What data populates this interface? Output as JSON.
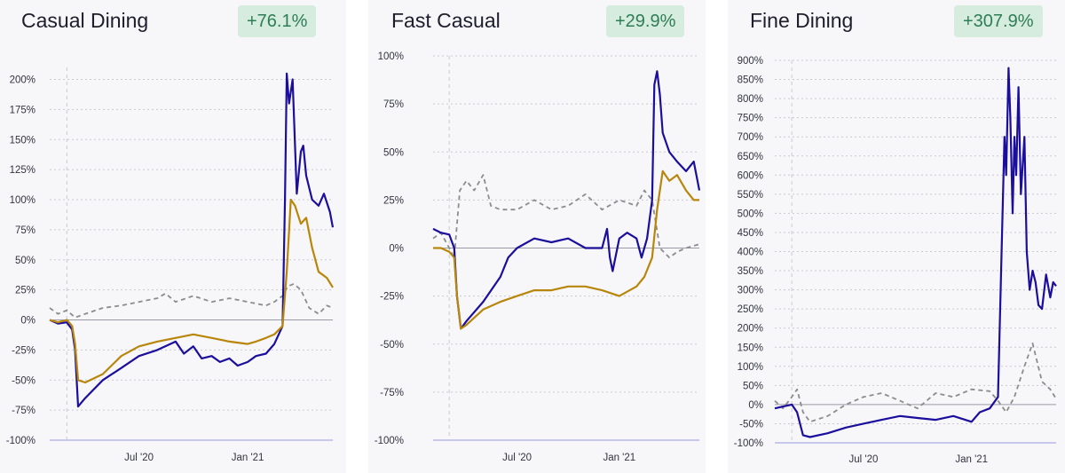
{
  "chart_data": [
    {
      "type": "line",
      "title": "Casual Dining",
      "badge": "+76.1%",
      "yticks": [
        "200%",
        "175%",
        "150%",
        "125%",
        "100%",
        "75%",
        "50%",
        "25%",
        "0%",
        "-25%",
        "-50%",
        "-75%",
        "-100%"
      ],
      "ylim": [
        -100,
        210
      ],
      "xlim": [
        "2020-02-01",
        "2021-05-25"
      ],
      "xticks": [
        {
          "label": "Jul '20",
          "date": "2020-07-01"
        },
        {
          "label": "Jan '21",
          "date": "2021-01-01"
        }
      ],
      "marker_date": "2020-03-01",
      "colors": {
        "blue": "#1b0e9c",
        "gold": "#b8860b",
        "gray": "#8c8c8c"
      },
      "series": [
        {
          "key": "blue",
          "style": "solid",
          "x": [
            "2020-02-01",
            "2020-02-15",
            "2020-03-01",
            "2020-03-10",
            "2020-03-15",
            "2020-03-20",
            "2020-04-01",
            "2020-05-01",
            "2020-06-01",
            "2020-07-01",
            "2020-08-01",
            "2020-09-01",
            "2020-09-15",
            "2020-10-01",
            "2020-10-15",
            "2020-11-01",
            "2020-11-15",
            "2020-12-01",
            "2020-12-15",
            "2021-01-01",
            "2021-01-15",
            "2021-02-01",
            "2021-02-15",
            "2021-03-01",
            "2021-03-05",
            "2021-03-08",
            "2021-03-12",
            "2021-03-18",
            "2021-03-25",
            "2021-04-01",
            "2021-04-05",
            "2021-04-10",
            "2021-04-20",
            "2021-05-01",
            "2021-05-10",
            "2021-05-20",
            "2021-05-25"
          ],
          "y": [
            0,
            -3,
            -2,
            -8,
            -25,
            -72,
            -65,
            -50,
            -40,
            -30,
            -25,
            -18,
            -28,
            -22,
            -32,
            -30,
            -35,
            -32,
            -38,
            -35,
            -30,
            -28,
            -20,
            -5,
            100,
            205,
            180,
            200,
            105,
            140,
            145,
            120,
            100,
            95,
            105,
            90,
            77
          ]
        },
        {
          "key": "gold",
          "style": "solid",
          "x": [
            "2020-02-01",
            "2020-02-15",
            "2020-03-01",
            "2020-03-10",
            "2020-03-15",
            "2020-03-20",
            "2020-04-01",
            "2020-05-01",
            "2020-06-01",
            "2020-07-01",
            "2020-08-01",
            "2020-09-01",
            "2020-10-01",
            "2020-11-01",
            "2020-12-01",
            "2021-01-01",
            "2021-01-15",
            "2021-02-01",
            "2021-02-15",
            "2021-03-01",
            "2021-03-08",
            "2021-03-15",
            "2021-03-22",
            "2021-04-01",
            "2021-04-10",
            "2021-04-20",
            "2021-05-01",
            "2021-05-15",
            "2021-05-25"
          ],
          "y": [
            0,
            -2,
            0,
            -5,
            -20,
            -50,
            -52,
            -45,
            -30,
            -22,
            -18,
            -15,
            -12,
            -15,
            -18,
            -20,
            -18,
            -15,
            -12,
            -5,
            40,
            100,
            95,
            80,
            85,
            60,
            40,
            35,
            27
          ]
        },
        {
          "key": "gray",
          "style": "dashed",
          "x": [
            "2020-02-01",
            "2020-02-15",
            "2020-03-01",
            "2020-03-15",
            "2020-04-01",
            "2020-05-01",
            "2020-06-01",
            "2020-07-01",
            "2020-08-01",
            "2020-08-15",
            "2020-09-01",
            "2020-10-01",
            "2020-11-01",
            "2020-12-01",
            "2021-01-01",
            "2021-02-01",
            "2021-02-15",
            "2021-03-01",
            "2021-03-10",
            "2021-03-20",
            "2021-04-01",
            "2021-04-15",
            "2021-05-01",
            "2021-05-15",
            "2021-05-25"
          ],
          "y": [
            10,
            5,
            8,
            2,
            5,
            10,
            12,
            15,
            18,
            22,
            15,
            20,
            15,
            18,
            15,
            12,
            15,
            20,
            28,
            30,
            25,
            10,
            5,
            12,
            10
          ]
        }
      ]
    },
    {
      "type": "line",
      "title": "Fast Casual",
      "badge": "+29.9%",
      "yticks": [
        "100%",
        "75%",
        "50%",
        "25%",
        "0%",
        "-25%",
        "-50%",
        "-75%",
        "-100%"
      ],
      "ylim": [
        -100,
        100
      ],
      "xlim": [
        "2020-02-01",
        "2021-05-25"
      ],
      "xticks": [
        {
          "label": "Jul '20",
          "date": "2020-07-01"
        },
        {
          "label": "Jan '21",
          "date": "2021-01-01"
        }
      ],
      "marker_date": "2020-03-01",
      "colors": {
        "blue": "#1b0e9c",
        "gold": "#b8860b",
        "gray": "#8c8c8c"
      },
      "series": [
        {
          "key": "blue",
          "style": "solid",
          "x": [
            "2020-02-01",
            "2020-02-15",
            "2020-03-01",
            "2020-03-10",
            "2020-03-15",
            "2020-03-22",
            "2020-04-01",
            "2020-05-01",
            "2020-06-01",
            "2020-06-15",
            "2020-07-01",
            "2020-08-01",
            "2020-09-01",
            "2020-10-01",
            "2020-11-01",
            "2020-12-01",
            "2020-12-10",
            "2020-12-15",
            "2020-12-20",
            "2021-01-01",
            "2021-01-15",
            "2021-02-01",
            "2021-02-10",
            "2021-02-20",
            "2021-03-01",
            "2021-03-05",
            "2021-03-10",
            "2021-03-15",
            "2021-03-20",
            "2021-04-01",
            "2021-04-15",
            "2021-05-01",
            "2021-05-15",
            "2021-05-25"
          ],
          "y": [
            10,
            8,
            7,
            0,
            -25,
            -42,
            -38,
            -28,
            -15,
            -5,
            0,
            5,
            3,
            5,
            0,
            0,
            10,
            -5,
            -12,
            5,
            8,
            5,
            -5,
            5,
            25,
            85,
            92,
            80,
            60,
            50,
            45,
            40,
            45,
            30
          ]
        },
        {
          "key": "gold",
          "style": "solid",
          "x": [
            "2020-02-01",
            "2020-02-15",
            "2020-03-01",
            "2020-03-10",
            "2020-03-15",
            "2020-03-22",
            "2020-04-01",
            "2020-05-01",
            "2020-06-01",
            "2020-07-01",
            "2020-08-01",
            "2020-09-01",
            "2020-10-01",
            "2020-11-01",
            "2020-12-01",
            "2021-01-01",
            "2021-02-01",
            "2021-02-15",
            "2021-03-01",
            "2021-03-10",
            "2021-03-20",
            "2021-04-01",
            "2021-04-15",
            "2021-05-01",
            "2021-05-15",
            "2021-05-25"
          ],
          "y": [
            0,
            0,
            -2,
            -5,
            -25,
            -42,
            -40,
            -32,
            -28,
            -25,
            -22,
            -22,
            -20,
            -20,
            -22,
            -25,
            -20,
            -15,
            -5,
            20,
            40,
            35,
            38,
            30,
            25,
            25
          ]
        },
        {
          "key": "gray",
          "style": "dashed",
          "x": [
            "2020-02-01",
            "2020-02-15",
            "2020-03-01",
            "2020-03-10",
            "2020-03-20",
            "2020-04-01",
            "2020-04-15",
            "2020-05-01",
            "2020-05-15",
            "2020-06-01",
            "2020-07-01",
            "2020-08-01",
            "2020-09-01",
            "2020-10-01",
            "2020-11-01",
            "2020-12-01",
            "2021-01-01",
            "2021-02-01",
            "2021-02-15",
            "2021-03-01",
            "2021-03-15",
            "2021-04-01",
            "2021-04-15",
            "2021-05-01",
            "2021-05-25"
          ],
          "y": [
            5,
            8,
            0,
            -5,
            30,
            35,
            30,
            38,
            22,
            20,
            20,
            25,
            20,
            22,
            28,
            20,
            25,
            22,
            30,
            25,
            0,
            -5,
            -2,
            0,
            2
          ]
        }
      ]
    },
    {
      "type": "line",
      "title": "Fine Dining",
      "badge": "+307.9%",
      "yticks": [
        "900%",
        "850%",
        "800%",
        "750%",
        "700%",
        "650%",
        "600%",
        "550%",
        "500%",
        "450%",
        "400%",
        "350%",
        "300%",
        "250%",
        "200%",
        "150%",
        "100%",
        "50%",
        "0%",
        "-50%",
        "-100%"
      ],
      "ylim": [
        -100,
        900
      ],
      "xlim": [
        "2020-02-01",
        "2021-05-25"
      ],
      "xticks": [
        {
          "label": "Jul '20",
          "date": "2020-07-01"
        },
        {
          "label": "Jan '21",
          "date": "2021-01-01"
        }
      ],
      "marker_date": "2020-03-01",
      "colors": {
        "blue": "#1b0e9c",
        "gold": "#b8860b",
        "gray": "#8c8c8c"
      },
      "series": [
        {
          "key": "blue",
          "style": "solid",
          "x": [
            "2020-02-01",
            "2020-02-15",
            "2020-03-01",
            "2020-03-10",
            "2020-03-20",
            "2020-04-01",
            "2020-05-01",
            "2020-06-01",
            "2020-07-01",
            "2020-08-01",
            "2020-09-01",
            "2020-10-01",
            "2020-11-01",
            "2020-12-01",
            "2021-01-01",
            "2021-01-15",
            "2021-02-01",
            "2021-02-15",
            "2021-02-22",
            "2021-02-26",
            "2021-03-01",
            "2021-03-05",
            "2021-03-08",
            "2021-03-12",
            "2021-03-15",
            "2021-03-18",
            "2021-03-22",
            "2021-03-26",
            "2021-04-01",
            "2021-04-05",
            "2021-04-10",
            "2021-04-15",
            "2021-04-20",
            "2021-04-25",
            "2021-05-01",
            "2021-05-08",
            "2021-05-15",
            "2021-05-20",
            "2021-05-25"
          ],
          "y": [
            -10,
            -5,
            0,
            -20,
            -80,
            -85,
            -75,
            -60,
            -50,
            -40,
            -30,
            -35,
            -40,
            -30,
            -45,
            -20,
            -10,
            20,
            450,
            700,
            600,
            880,
            750,
            500,
            700,
            600,
            830,
            550,
            700,
            400,
            300,
            350,
            320,
            260,
            250,
            340,
            280,
            320,
            310
          ]
        },
        {
          "key": "gray",
          "style": "dashed",
          "x": [
            "2020-02-01",
            "2020-02-15",
            "2020-03-01",
            "2020-03-10",
            "2020-03-20",
            "2020-04-01",
            "2020-05-01",
            "2020-06-01",
            "2020-07-01",
            "2020-08-01",
            "2020-09-01",
            "2020-10-01",
            "2020-11-01",
            "2020-12-01",
            "2021-01-01",
            "2021-02-01",
            "2021-02-15",
            "2021-03-01",
            "2021-03-15",
            "2021-04-01",
            "2021-04-15",
            "2021-05-01",
            "2021-05-15",
            "2021-05-25"
          ],
          "y": [
            10,
            -10,
            20,
            40,
            -20,
            -45,
            -30,
            0,
            20,
            30,
            10,
            -10,
            30,
            20,
            40,
            35,
            10,
            -20,
            20,
            100,
            160,
            60,
            40,
            15
          ]
        }
      ]
    }
  ]
}
